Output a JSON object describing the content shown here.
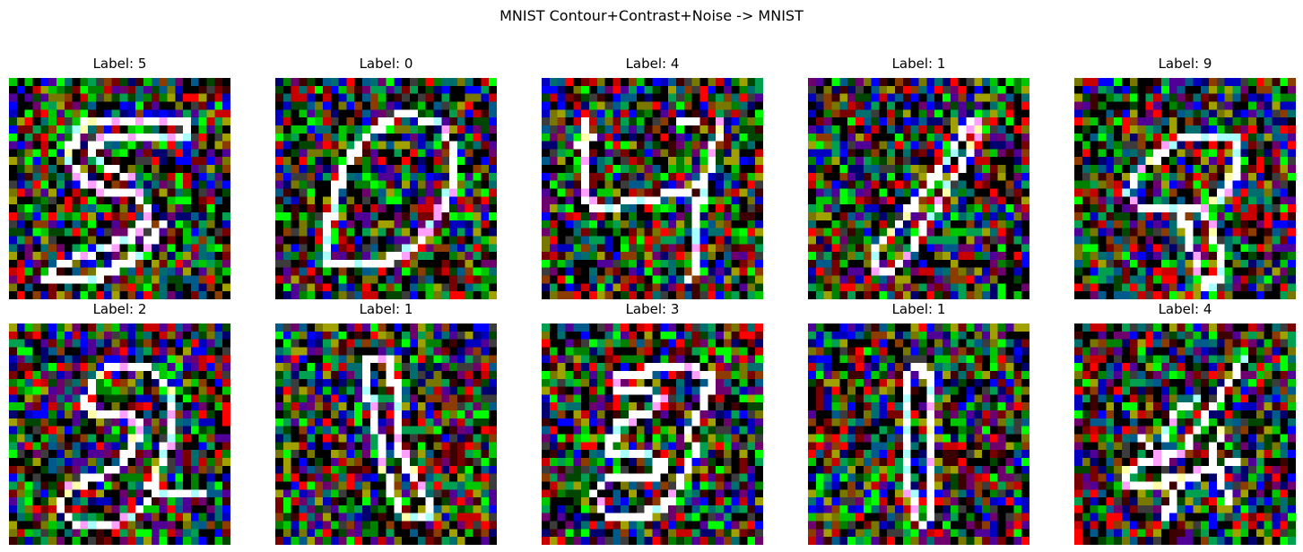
{
  "figure": {
    "title": "MNIST Contour+Contrast+Noise -> MNIST"
  },
  "panels": [
    {
      "label": "Label: 5"
    },
    {
      "label": "Label: 0"
    },
    {
      "label": "Label: 4"
    },
    {
      "label": "Label: 1"
    },
    {
      "label": "Label: 9"
    },
    {
      "label": "Label: 2"
    },
    {
      "label": "Label: 1"
    },
    {
      "label": "Label: 3"
    },
    {
      "label": "Label: 1"
    },
    {
      "label": "Label: 4"
    }
  ],
  "colors": {
    "background": "#ffffff",
    "text": "#000000",
    "contour": "#ffffff"
  }
}
